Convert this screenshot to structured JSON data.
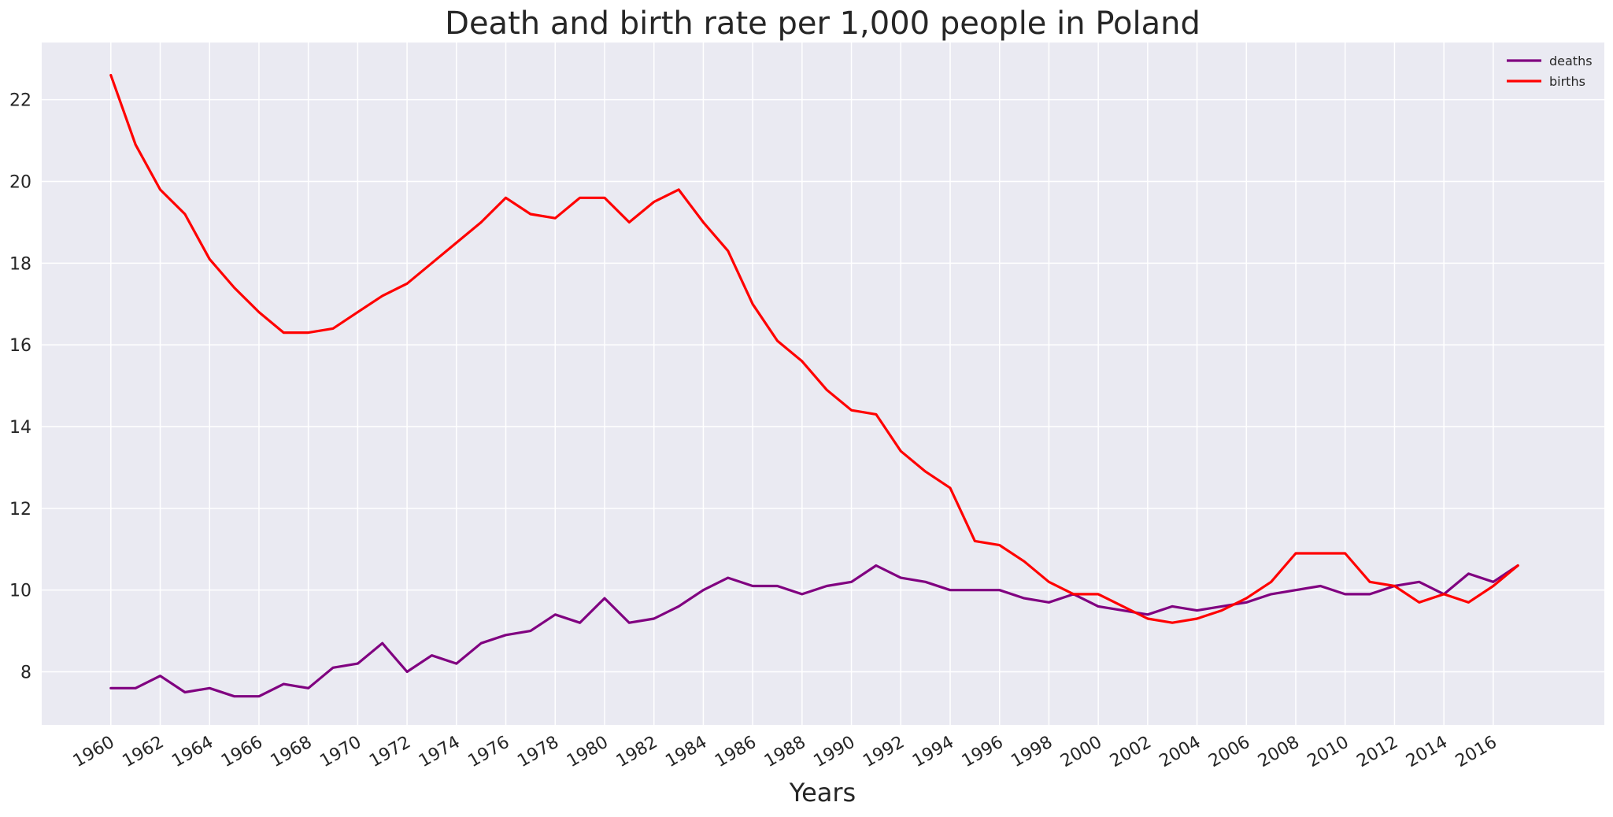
{
  "chart_data": {
    "type": "line",
    "title": "Death and birth rate per 1,000 people in Poland",
    "xlabel": "Years",
    "ylabel": "",
    "xlim": [
      1957.2,
      2020.5
    ],
    "ylim": [
      6.7,
      23.4
    ],
    "xticks": [
      1960,
      1962,
      1964,
      1966,
      1968,
      1970,
      1972,
      1974,
      1976,
      1978,
      1980,
      1982,
      1984,
      1986,
      1988,
      1990,
      1992,
      1994,
      1996,
      1998,
      2000,
      2002,
      2004,
      2006,
      2008,
      2010,
      2012,
      2014,
      2016
    ],
    "yticks": [
      8,
      10,
      12,
      14,
      16,
      18,
      20,
      22
    ],
    "grid": true,
    "legend_position": "top-right",
    "x": [
      1960,
      1961,
      1962,
      1963,
      1964,
      1965,
      1966,
      1967,
      1968,
      1969,
      1970,
      1971,
      1972,
      1973,
      1974,
      1975,
      1976,
      1977,
      1978,
      1979,
      1980,
      1981,
      1982,
      1983,
      1984,
      1985,
      1986,
      1987,
      1988,
      1989,
      1990,
      1991,
      1992,
      1993,
      1994,
      1995,
      1996,
      1997,
      1998,
      1999,
      2000,
      2001,
      2002,
      2003,
      2004,
      2005,
      2006,
      2007,
      2008,
      2009,
      2010,
      2011,
      2012,
      2013,
      2014,
      2015,
      2016,
      2017
    ],
    "series": [
      {
        "name": "deaths",
        "color": "#800080",
        "values": [
          7.6,
          7.6,
          7.9,
          7.5,
          7.6,
          7.4,
          7.4,
          7.7,
          7.6,
          8.1,
          8.2,
          8.7,
          8.0,
          8.4,
          8.2,
          8.7,
          8.9,
          9.0,
          9.4,
          9.2,
          9.8,
          9.2,
          9.3,
          9.6,
          10.0,
          10.3,
          10.1,
          10.1,
          9.9,
          10.1,
          10.2,
          10.6,
          10.3,
          10.2,
          10.0,
          10.0,
          10.0,
          9.8,
          9.7,
          9.9,
          9.6,
          9.5,
          9.4,
          9.6,
          9.5,
          9.6,
          9.7,
          9.9,
          10.0,
          10.1,
          9.9,
          9.9,
          10.1,
          10.2,
          9.9,
          10.4,
          10.2,
          10.6
        ]
      },
      {
        "name": "births",
        "color": "#ff0000",
        "values": [
          22.6,
          20.9,
          19.8,
          19.2,
          18.1,
          17.4,
          16.8,
          16.3,
          16.3,
          16.4,
          16.8,
          17.2,
          17.5,
          18.0,
          18.5,
          19.0,
          19.6,
          19.2,
          19.1,
          19.6,
          19.6,
          19.0,
          19.5,
          19.8,
          19.0,
          18.3,
          17.0,
          16.1,
          15.6,
          14.9,
          14.4,
          14.3,
          13.4,
          12.9,
          12.5,
          11.2,
          11.1,
          10.7,
          10.2,
          9.9,
          9.9,
          9.6,
          9.3,
          9.2,
          9.3,
          9.5,
          9.8,
          10.2,
          10.9,
          10.9,
          10.9,
          10.2,
          10.1,
          9.7,
          9.9,
          9.7,
          10.1,
          10.6
        ]
      }
    ]
  }
}
